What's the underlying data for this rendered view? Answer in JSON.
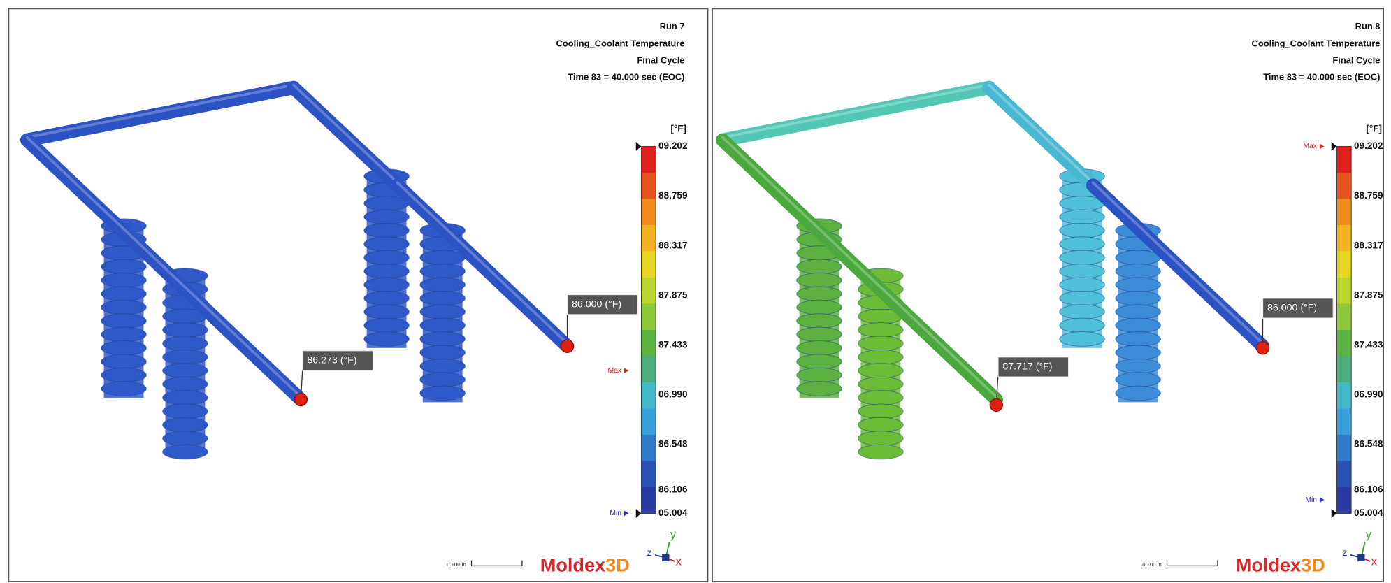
{
  "panels": [
    {
      "run": "Run 7",
      "result": "Cooling_Coolant Temperature",
      "cycle": "Final Cycle",
      "time": "Time 83 = 40.000 sec (EOC)",
      "unit": "[°F]",
      "scale_labels": [
        "09.202",
        "88.759",
        "88.317",
        "87.875",
        "87.433",
        "06.990",
        "86.548",
        "86.106",
        "05.004"
      ],
      "max_marker": "Max",
      "min_marker": "Min",
      "probes": [
        "86.273 (°F)",
        "86.000 (°F)"
      ],
      "scale_bar": "0.100 in",
      "logo": "Moldex",
      "logo_suffix": "3D",
      "axes": [
        "y",
        "z",
        "x"
      ]
    },
    {
      "run": "Run 8",
      "result": "Cooling_Coolant Temperature",
      "cycle": "Final Cycle",
      "time": "Time 83 = 40.000 sec (EOC)",
      "unit": "[°F]",
      "scale_labels": [
        "09.202",
        "88.759",
        "88.317",
        "87.875",
        "87.433",
        "06.990",
        "86.548",
        "86.106",
        "05.004"
      ],
      "max_marker": "Max",
      "min_marker": "Min",
      "probes": [
        "87.717 (°F)",
        "86.000 (°F)"
      ],
      "scale_bar": "0.100 in",
      "logo": "Moldex",
      "logo_suffix": "3D",
      "axes": [
        "y",
        "z",
        "x"
      ]
    }
  ]
}
